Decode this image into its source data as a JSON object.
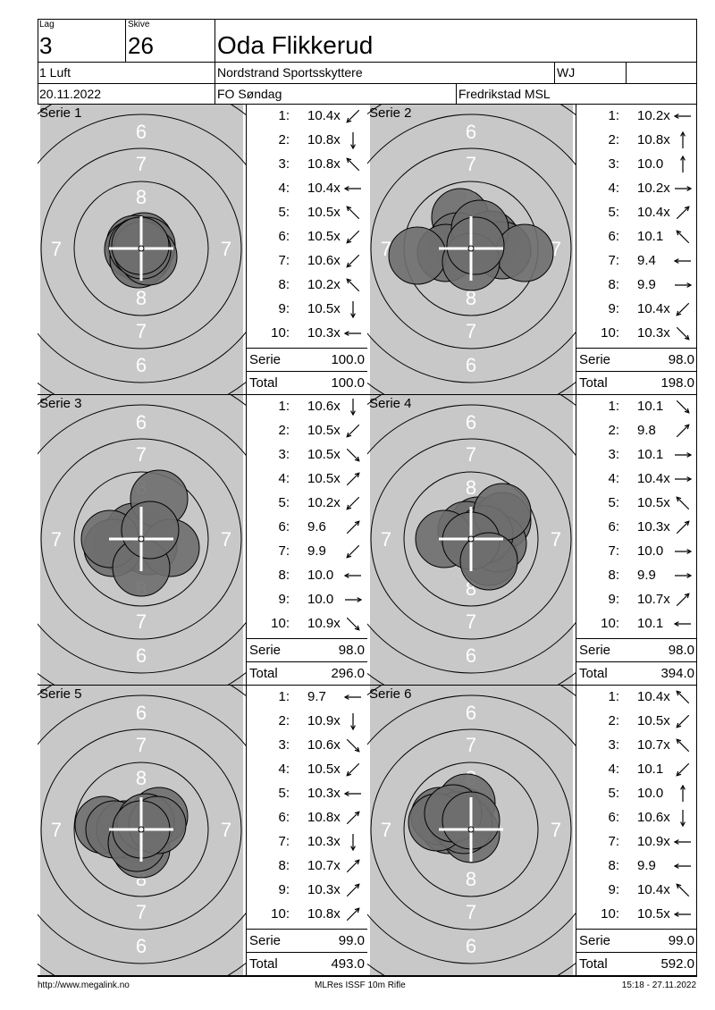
{
  "header": {
    "lag_label": "Lag",
    "lag": "3",
    "skive_label": "Skive",
    "skive": "26",
    "name": "Oda Flikkerud",
    "klasse": "1 Luft",
    "club": "Nordstrand Sportsskyttere",
    "code": "WJ",
    "date": "20.11.2022",
    "event": "FO Søndag",
    "venue": "Fredrikstad MSL"
  },
  "labels": {
    "serie": "Serie",
    "total": "Total"
  },
  "series": [
    {
      "title": "Serie 1",
      "serie": "100.0",
      "total": "100.0",
      "shots": [
        {
          "n": "1:",
          "v": "10.4x",
          "dir": "sw"
        },
        {
          "n": "2:",
          "v": "10.8x",
          "dir": "s"
        },
        {
          "n": "3:",
          "v": "10.8x",
          "dir": "nw"
        },
        {
          "n": "4:",
          "v": "10.4x",
          "dir": "w"
        },
        {
          "n": "5:",
          "v": "10.5x",
          "dir": "nw"
        },
        {
          "n": "6:",
          "v": "10.5x",
          "dir": "sw"
        },
        {
          "n": "7:",
          "v": "10.6x",
          "dir": "sw"
        },
        {
          "n": "8:",
          "v": "10.2x",
          "dir": "nw"
        },
        {
          "n": "9:",
          "v": "10.5x",
          "dir": "s"
        },
        {
          "n": "10:",
          "v": "10.3x",
          "dir": "w"
        }
      ],
      "holes": [
        [
          3,
          -8
        ],
        [
          -7,
          -5
        ],
        [
          6,
          -3
        ],
        [
          -9,
          1
        ],
        [
          2,
          7
        ],
        [
          -3,
          12
        ],
        [
          8,
          9
        ],
        [
          -4,
          -2
        ],
        [
          1,
          2
        ],
        [
          -1,
          -3
        ]
      ]
    },
    {
      "title": "Serie 2",
      "serie": "98.0",
      "total": "198.0",
      "shots": [
        {
          "n": "1:",
          "v": "10.2x",
          "dir": "w"
        },
        {
          "n": "2:",
          "v": "10.8x",
          "dir": "n"
        },
        {
          "n": "3:",
          "v": "10.0",
          "dir": "n"
        },
        {
          "n": "4:",
          "v": "10.2x",
          "dir": "e"
        },
        {
          "n": "5:",
          "v": "10.4x",
          "dir": "ne"
        },
        {
          "n": "6:",
          "v": "10.1",
          "dir": "nw"
        },
        {
          "n": "7:",
          "v": "9.4",
          "dir": "w"
        },
        {
          "n": "8:",
          "v": "9.9",
          "dir": "e"
        },
        {
          "n": "9:",
          "v": "10.4x",
          "dir": "sw"
        },
        {
          "n": "10:",
          "v": "10.3x",
          "dir": "se"
        }
      ],
      "holes": [
        [
          -12,
          -35
        ],
        [
          -15,
          -8
        ],
        [
          22,
          -10
        ],
        [
          35,
          2
        ],
        [
          -28,
          5
        ],
        [
          10,
          -22
        ],
        [
          -60,
          8
        ],
        [
          60,
          5
        ],
        [
          0,
          15
        ],
        [
          5,
          -3
        ]
      ]
    },
    {
      "title": "Serie 3",
      "serie": "98.0",
      "total": "296.0",
      "shots": [
        {
          "n": "1:",
          "v": "10.6x",
          "dir": "s"
        },
        {
          "n": "2:",
          "v": "10.5x",
          "dir": "sw"
        },
        {
          "n": "3:",
          "v": "10.5x",
          "dir": "se"
        },
        {
          "n": "4:",
          "v": "10.5x",
          "dir": "ne"
        },
        {
          "n": "5:",
          "v": "10.2x",
          "dir": "sw"
        },
        {
          "n": "6:",
          "v": "9.6",
          "dir": "ne"
        },
        {
          "n": "7:",
          "v": "9.9",
          "dir": "sw"
        },
        {
          "n": "8:",
          "v": "10.0",
          "dir": "w"
        },
        {
          "n": "9:",
          "v": "10.0",
          "dir": "e"
        },
        {
          "n": "10:",
          "v": "10.9x",
          "dir": "se"
        }
      ],
      "holes": [
        [
          0,
          0
        ],
        [
          -20,
          5
        ],
        [
          8,
          8
        ],
        [
          -8,
          -8
        ],
        [
          -32,
          10
        ],
        [
          20,
          -45
        ],
        [
          33,
          10
        ],
        [
          -35,
          0
        ],
        [
          0,
          32
        ],
        [
          10,
          -10
        ]
      ]
    },
    {
      "title": "Serie 4",
      "serie": "98.0",
      "total": "394.0",
      "shots": [
        {
          "n": "1:",
          "v": "10.1",
          "dir": "se"
        },
        {
          "n": "2:",
          "v": "9.8",
          "dir": "ne"
        },
        {
          "n": "3:",
          "v": "10.1",
          "dir": "e"
        },
        {
          "n": "4:",
          "v": "10.4x",
          "dir": "e"
        },
        {
          "n": "5:",
          "v": "10.5x",
          "dir": "nw"
        },
        {
          "n": "6:",
          "v": "10.3x",
          "dir": "ne"
        },
        {
          "n": "7:",
          "v": "10.0",
          "dir": "e"
        },
        {
          "n": "8:",
          "v": "9.9",
          "dir": "e"
        },
        {
          "n": "9:",
          "v": "10.7x",
          "dir": "ne"
        },
        {
          "n": "10:",
          "v": "10.1",
          "dir": "w"
        }
      ],
      "holes": [
        [
          8,
          -15
        ],
        [
          35,
          -20
        ],
        [
          20,
          20
        ],
        [
          30,
          5
        ],
        [
          -5,
          -10
        ],
        [
          15,
          -5
        ],
        [
          -30,
          0
        ],
        [
          35,
          -30
        ],
        [
          0,
          2
        ],
        [
          20,
          25
        ]
      ]
    },
    {
      "title": "Serie 5",
      "serie": "99.0",
      "total": "493.0",
      "shots": [
        {
          "n": "1:",
          "v": "9.7",
          "dir": "w"
        },
        {
          "n": "2:",
          "v": "10.9x",
          "dir": "s"
        },
        {
          "n": "3:",
          "v": "10.6x",
          "dir": "se"
        },
        {
          "n": "4:",
          "v": "10.5x",
          "dir": "sw"
        },
        {
          "n": "5:",
          "v": "10.3x",
          "dir": "w"
        },
        {
          "n": "6:",
          "v": "10.8x",
          "dir": "ne"
        },
        {
          "n": "7:",
          "v": "10.3x",
          "dir": "s"
        },
        {
          "n": "8:",
          "v": "10.7x",
          "dir": "ne"
        },
        {
          "n": "9:",
          "v": "10.3x",
          "dir": "ne"
        },
        {
          "n": "10:",
          "v": "10.8x",
          "dir": "ne"
        }
      ],
      "holes": [
        [
          -42,
          -5
        ],
        [
          -2,
          5
        ],
        [
          0,
          22
        ],
        [
          -18,
          0
        ],
        [
          -30,
          0
        ],
        [
          20,
          -15
        ],
        [
          -5,
          15
        ],
        [
          5,
          -8
        ],
        [
          18,
          -5
        ],
        [
          0,
          0
        ]
      ]
    },
    {
      "title": "Serie 6",
      "serie": "99.0",
      "total": "592.0",
      "shots": [
        {
          "n": "1:",
          "v": "10.4x",
          "dir": "nw"
        },
        {
          "n": "2:",
          "v": "10.5x",
          "dir": "sw"
        },
        {
          "n": "3:",
          "v": "10.7x",
          "dir": "nw"
        },
        {
          "n": "4:",
          "v": "10.1",
          "dir": "sw"
        },
        {
          "n": "5:",
          "v": "10.0",
          "dir": "n"
        },
        {
          "n": "6:",
          "v": "10.6x",
          "dir": "s"
        },
        {
          "n": "7:",
          "v": "10.9x",
          "dir": "w"
        },
        {
          "n": "8:",
          "v": "9.9",
          "dir": "w"
        },
        {
          "n": "9:",
          "v": "10.4x",
          "dir": "nw"
        },
        {
          "n": "10:",
          "v": "10.5x",
          "dir": "w"
        }
      ],
      "holes": [
        [
          -10,
          -15
        ],
        [
          -25,
          -5
        ],
        [
          -5,
          -30
        ],
        [
          -35,
          -15
        ],
        [
          0,
          5
        ],
        [
          -15,
          -10
        ],
        [
          -8,
          -5
        ],
        [
          -38,
          -8
        ],
        [
          -20,
          -18
        ],
        [
          0,
          -10
        ]
      ]
    }
  ],
  "target_numbers": {
    "ring6": "6",
    "ring7": "7",
    "ring8": "8"
  },
  "footer": {
    "url": "http://www.megalink.no",
    "software": "MLRes ISSF 10m Rifle",
    "timestamp": "15:18 - 27.11.2022"
  }
}
